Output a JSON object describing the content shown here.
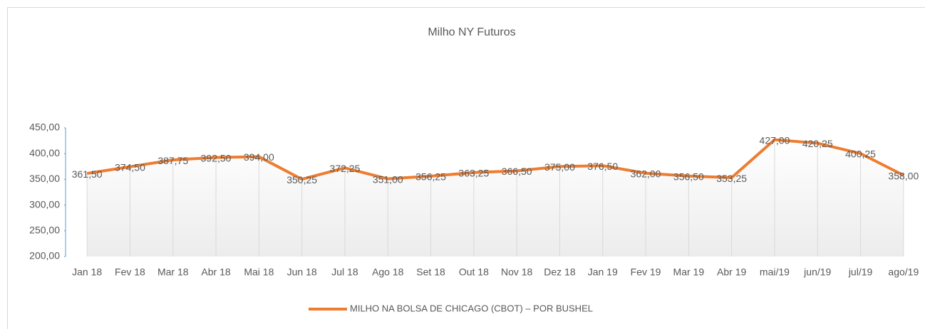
{
  "chart_data": {
    "type": "line",
    "title": "Milho NY Futuros",
    "categories": [
      "Jan 18",
      "Fev 18",
      "Mar 18",
      "Abr 18",
      "Mai 18",
      "Jun 18",
      "Jul 18",
      "Ago 18",
      "Set 18",
      "Out 18",
      "Nov 18",
      "Dez 18",
      "Jan 19",
      "Fev 19",
      "Mar 19",
      "Abr 19",
      "mai/19",
      "jun/19",
      "jul/19",
      "ago/19"
    ],
    "series": [
      {
        "name": "MILHO NA BOLSA DE CHICAGO (CBOT) – POR BUSHEL",
        "color": "#ed7d31",
        "values": [
          361.5,
          374.5,
          387.75,
          392.5,
          394,
          350.25,
          372.25,
          351,
          356.25,
          363.25,
          366.5,
          375,
          376.5,
          362,
          356.5,
          353.25,
          427,
          420.25,
          400.25,
          358
        ],
        "value_labels": [
          "361,50",
          "374,50",
          "387,75",
          "392,50",
          "394,00",
          "350,25",
          "372,25",
          "351,00",
          "356,25",
          "363,25",
          "366,50",
          "375,00",
          "376,50",
          "362,00",
          "356,50",
          "353,25",
          "427,00",
          "420,25",
          "400,25",
          "358,00"
        ]
      }
    ],
    "ylim": [
      200,
      450
    ],
    "yticks": [
      {
        "value": 200,
        "label": "200,00"
      },
      {
        "value": 250,
        "label": "250,00"
      },
      {
        "value": 300,
        "label": "300,00"
      },
      {
        "value": 350,
        "label": "350,00"
      },
      {
        "value": 400,
        "label": "400,00"
      },
      {
        "value": 450,
        "label": "450,00"
      }
    ],
    "legend": "bottom"
  }
}
